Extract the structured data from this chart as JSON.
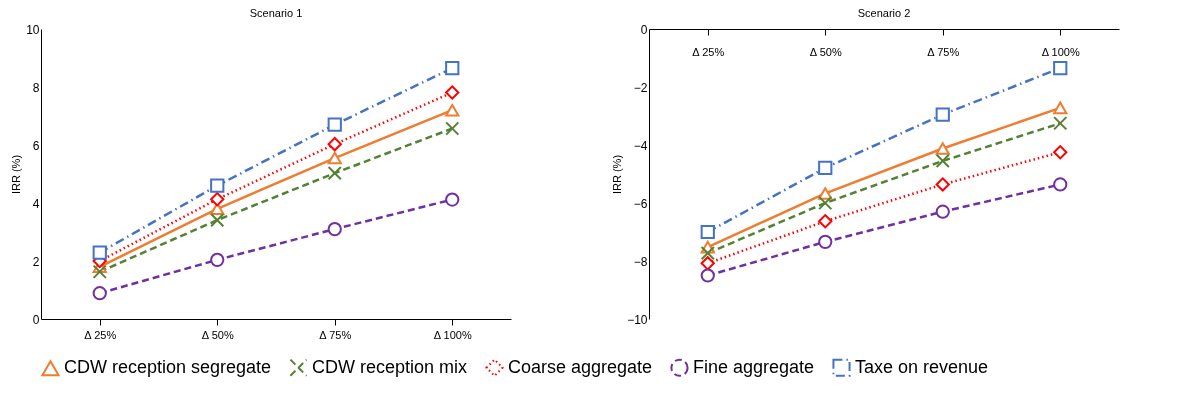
{
  "chart_data": [
    {
      "type": "line",
      "title": "Scenario 1",
      "ylabel": "IRR (%)",
      "categories": [
        "Δ 25%",
        "Δ 50%",
        "Δ 75%",
        "Δ 100%"
      ],
      "ylim": [
        0,
        10
      ],
      "yticks": [
        0,
        2,
        4,
        6,
        8,
        10
      ],
      "legend": "bottom",
      "series": [
        {
          "name": "CDW reception segregate",
          "color": "#ed7d31",
          "marker": "triangle",
          "line_style": "solid",
          "values": [
            1.8,
            3.8,
            5.55,
            7.2
          ]
        },
        {
          "name": "CDW reception mix",
          "color": "#548235",
          "marker": "cross",
          "line_style": "dashed",
          "values": [
            1.63,
            3.41,
            5.03,
            6.57
          ]
        },
        {
          "name": "Coarse aggregate",
          "color": "#ff0000",
          "marker": "diamond",
          "line_style": "dotted",
          "values": [
            2.0,
            4.13,
            6.03,
            7.81
          ]
        },
        {
          "name": "Fine aggregate",
          "color": "#7030a0",
          "marker": "circle",
          "line_style": "dashed",
          "values": [
            0.89,
            2.04,
            3.1,
            4.12
          ]
        },
        {
          "name": "Taxe on revenue",
          "color": "#4472c4",
          "marker": "square",
          "line_style": "dashdot",
          "values": [
            2.29,
            4.6,
            6.7,
            8.65
          ]
        }
      ]
    },
    {
      "type": "line",
      "title": "Scenario 2",
      "ylabel": "IRR (%)",
      "categories": [
        "Δ 25%",
        "Δ 50%",
        "Δ 75%",
        "Δ 100%"
      ],
      "ylim": [
        -10,
        0
      ],
      "yticks": [
        -10,
        -8,
        -6,
        -4,
        -2,
        0
      ],
      "legend": "bottom",
      "series": [
        {
          "name": "CDW reception segregate",
          "color": "#ed7d31",
          "marker": "triangle",
          "line_style": "solid",
          "values": [
            -7.52,
            -5.67,
            -4.12,
            -2.72
          ]
        },
        {
          "name": "CDW reception mix",
          "color": "#548235",
          "marker": "cross",
          "line_style": "dashed",
          "values": [
            -7.73,
            -6.0,
            -4.55,
            -3.25
          ]
        },
        {
          "name": "Coarse aggregate",
          "color": "#ff0000",
          "marker": "diamond",
          "line_style": "dotted",
          "values": [
            -8.08,
            -6.63,
            -5.36,
            -4.25
          ]
        },
        {
          "name": "Fine aggregate",
          "color": "#7030a0",
          "marker": "circle",
          "line_style": "dashed",
          "values": [
            -8.5,
            -7.34,
            -6.3,
            -5.36
          ]
        },
        {
          "name": "Taxe on revenue",
          "color": "#4472c4",
          "marker": "square",
          "line_style": "dashdot",
          "values": [
            -7.0,
            -4.79,
            -2.95,
            -1.35
          ]
        }
      ]
    }
  ]
}
